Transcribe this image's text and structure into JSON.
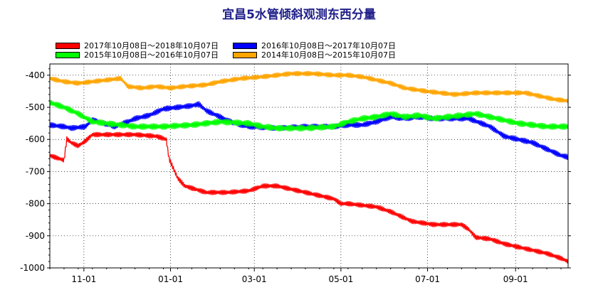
{
  "chart_data": {
    "type": "line",
    "title": "宜昌5水管倾斜观测东西分量",
    "xlabel": "",
    "ylabel": "",
    "ylim": [
      -1000,
      -365
    ],
    "yticks": [
      -400,
      -500,
      -600,
      -700,
      -800,
      -900,
      -1000
    ],
    "x_ticks": [
      "11-01",
      "01-01",
      "03-01",
      "05-01",
      "07-01",
      "09-01"
    ],
    "x_tick_days": [
      24,
      85,
      144,
      205,
      266,
      328
    ],
    "x_days_total": 365,
    "grid": true,
    "legend_position": "top",
    "series": [
      {
        "name": "2017年10月08日～2018年10月07日",
        "color": "#ff0000",
        "points": [
          [
            0,
            -650
          ],
          [
            10,
            -665
          ],
          [
            12,
            -598
          ],
          [
            15,
            -610
          ],
          [
            20,
            -620
          ],
          [
            25,
            -605
          ],
          [
            30,
            -585
          ],
          [
            45,
            -585
          ],
          [
            60,
            -585
          ],
          [
            75,
            -590
          ],
          [
            82,
            -600
          ],
          [
            84,
            -660
          ],
          [
            90,
            -720
          ],
          [
            95,
            -745
          ],
          [
            110,
            -765
          ],
          [
            125,
            -765
          ],
          [
            140,
            -760
          ],
          [
            150,
            -745
          ],
          [
            160,
            -745
          ],
          [
            170,
            -755
          ],
          [
            180,
            -765
          ],
          [
            190,
            -775
          ],
          [
            200,
            -785
          ],
          [
            205,
            -800
          ],
          [
            210,
            -800
          ],
          [
            230,
            -810
          ],
          [
            240,
            -825
          ],
          [
            255,
            -855
          ],
          [
            270,
            -865
          ],
          [
            290,
            -865
          ],
          [
            295,
            -880
          ],
          [
            300,
            -905
          ],
          [
            310,
            -910
          ],
          [
            320,
            -925
          ],
          [
            330,
            -935
          ],
          [
            340,
            -945
          ],
          [
            350,
            -955
          ],
          [
            360,
            -970
          ],
          [
            365,
            -980
          ]
        ],
        "amp": 8
      },
      {
        "name": "2016年10月08日～2017年10月07日",
        "color": "#0000ff",
        "points": [
          [
            0,
            -555
          ],
          [
            10,
            -560
          ],
          [
            15,
            -565
          ],
          [
            25,
            -560
          ],
          [
            30,
            -540
          ],
          [
            35,
            -545
          ],
          [
            45,
            -560
          ],
          [
            55,
            -545
          ],
          [
            60,
            -535
          ],
          [
            70,
            -525
          ],
          [
            80,
            -505
          ],
          [
            90,
            -500
          ],
          [
            100,
            -495
          ],
          [
            105,
            -490
          ],
          [
            110,
            -510
          ],
          [
            120,
            -530
          ],
          [
            130,
            -550
          ],
          [
            140,
            -560
          ],
          [
            160,
            -565
          ],
          [
            180,
            -560
          ],
          [
            200,
            -560
          ],
          [
            210,
            -555
          ],
          [
            220,
            -555
          ],
          [
            230,
            -545
          ],
          [
            240,
            -530
          ],
          [
            250,
            -535
          ],
          [
            260,
            -530
          ],
          [
            270,
            -535
          ],
          [
            280,
            -535
          ],
          [
            295,
            -535
          ],
          [
            310,
            -560
          ],
          [
            320,
            -590
          ],
          [
            330,
            -600
          ],
          [
            340,
            -610
          ],
          [
            350,
            -630
          ],
          [
            360,
            -650
          ],
          [
            365,
            -655
          ]
        ],
        "amp": 9
      },
      {
        "name": "2015年10月08日～2016年10月07日",
        "color": "#00ff00",
        "points": [
          [
            0,
            -485
          ],
          [
            10,
            -500
          ],
          [
            20,
            -520
          ],
          [
            30,
            -545
          ],
          [
            40,
            -550
          ],
          [
            50,
            -555
          ],
          [
            60,
            -560
          ],
          [
            80,
            -560
          ],
          [
            100,
            -555
          ],
          [
            120,
            -545
          ],
          [
            140,
            -550
          ],
          [
            150,
            -560
          ],
          [
            160,
            -565
          ],
          [
            180,
            -565
          ],
          [
            200,
            -560
          ],
          [
            210,
            -545
          ],
          [
            220,
            -535
          ],
          [
            230,
            -530
          ],
          [
            240,
            -520
          ],
          [
            250,
            -530
          ],
          [
            260,
            -525
          ],
          [
            270,
            -535
          ],
          [
            280,
            -530
          ],
          [
            290,
            -525
          ],
          [
            300,
            -520
          ],
          [
            310,
            -530
          ],
          [
            320,
            -540
          ],
          [
            330,
            -550
          ],
          [
            340,
            -555
          ],
          [
            350,
            -560
          ],
          [
            365,
            -560
          ]
        ],
        "amp": 10
      },
      {
        "name": "2014年10月08日～2015年10月07日",
        "color": "#ffa500",
        "points": [
          [
            0,
            -410
          ],
          [
            10,
            -420
          ],
          [
            20,
            -425
          ],
          [
            30,
            -420
          ],
          [
            40,
            -415
          ],
          [
            50,
            -410
          ],
          [
            55,
            -435
          ],
          [
            65,
            -440
          ],
          [
            75,
            -435
          ],
          [
            85,
            -440
          ],
          [
            95,
            -435
          ],
          [
            110,
            -430
          ],
          [
            120,
            -420
          ],
          [
            135,
            -410
          ],
          [
            150,
            -405
          ],
          [
            160,
            -400
          ],
          [
            170,
            -395
          ],
          [
            185,
            -395
          ],
          [
            200,
            -400
          ],
          [
            210,
            -400
          ],
          [
            220,
            -405
          ],
          [
            230,
            -415
          ],
          [
            240,
            -425
          ],
          [
            250,
            -440
          ],
          [
            265,
            -450
          ],
          [
            275,
            -455
          ],
          [
            285,
            -460
          ],
          [
            300,
            -455
          ],
          [
            315,
            -455
          ],
          [
            325,
            -455
          ],
          [
            335,
            -455
          ],
          [
            345,
            -465
          ],
          [
            355,
            -475
          ],
          [
            365,
            -480
          ]
        ],
        "amp": 8
      }
    ]
  }
}
